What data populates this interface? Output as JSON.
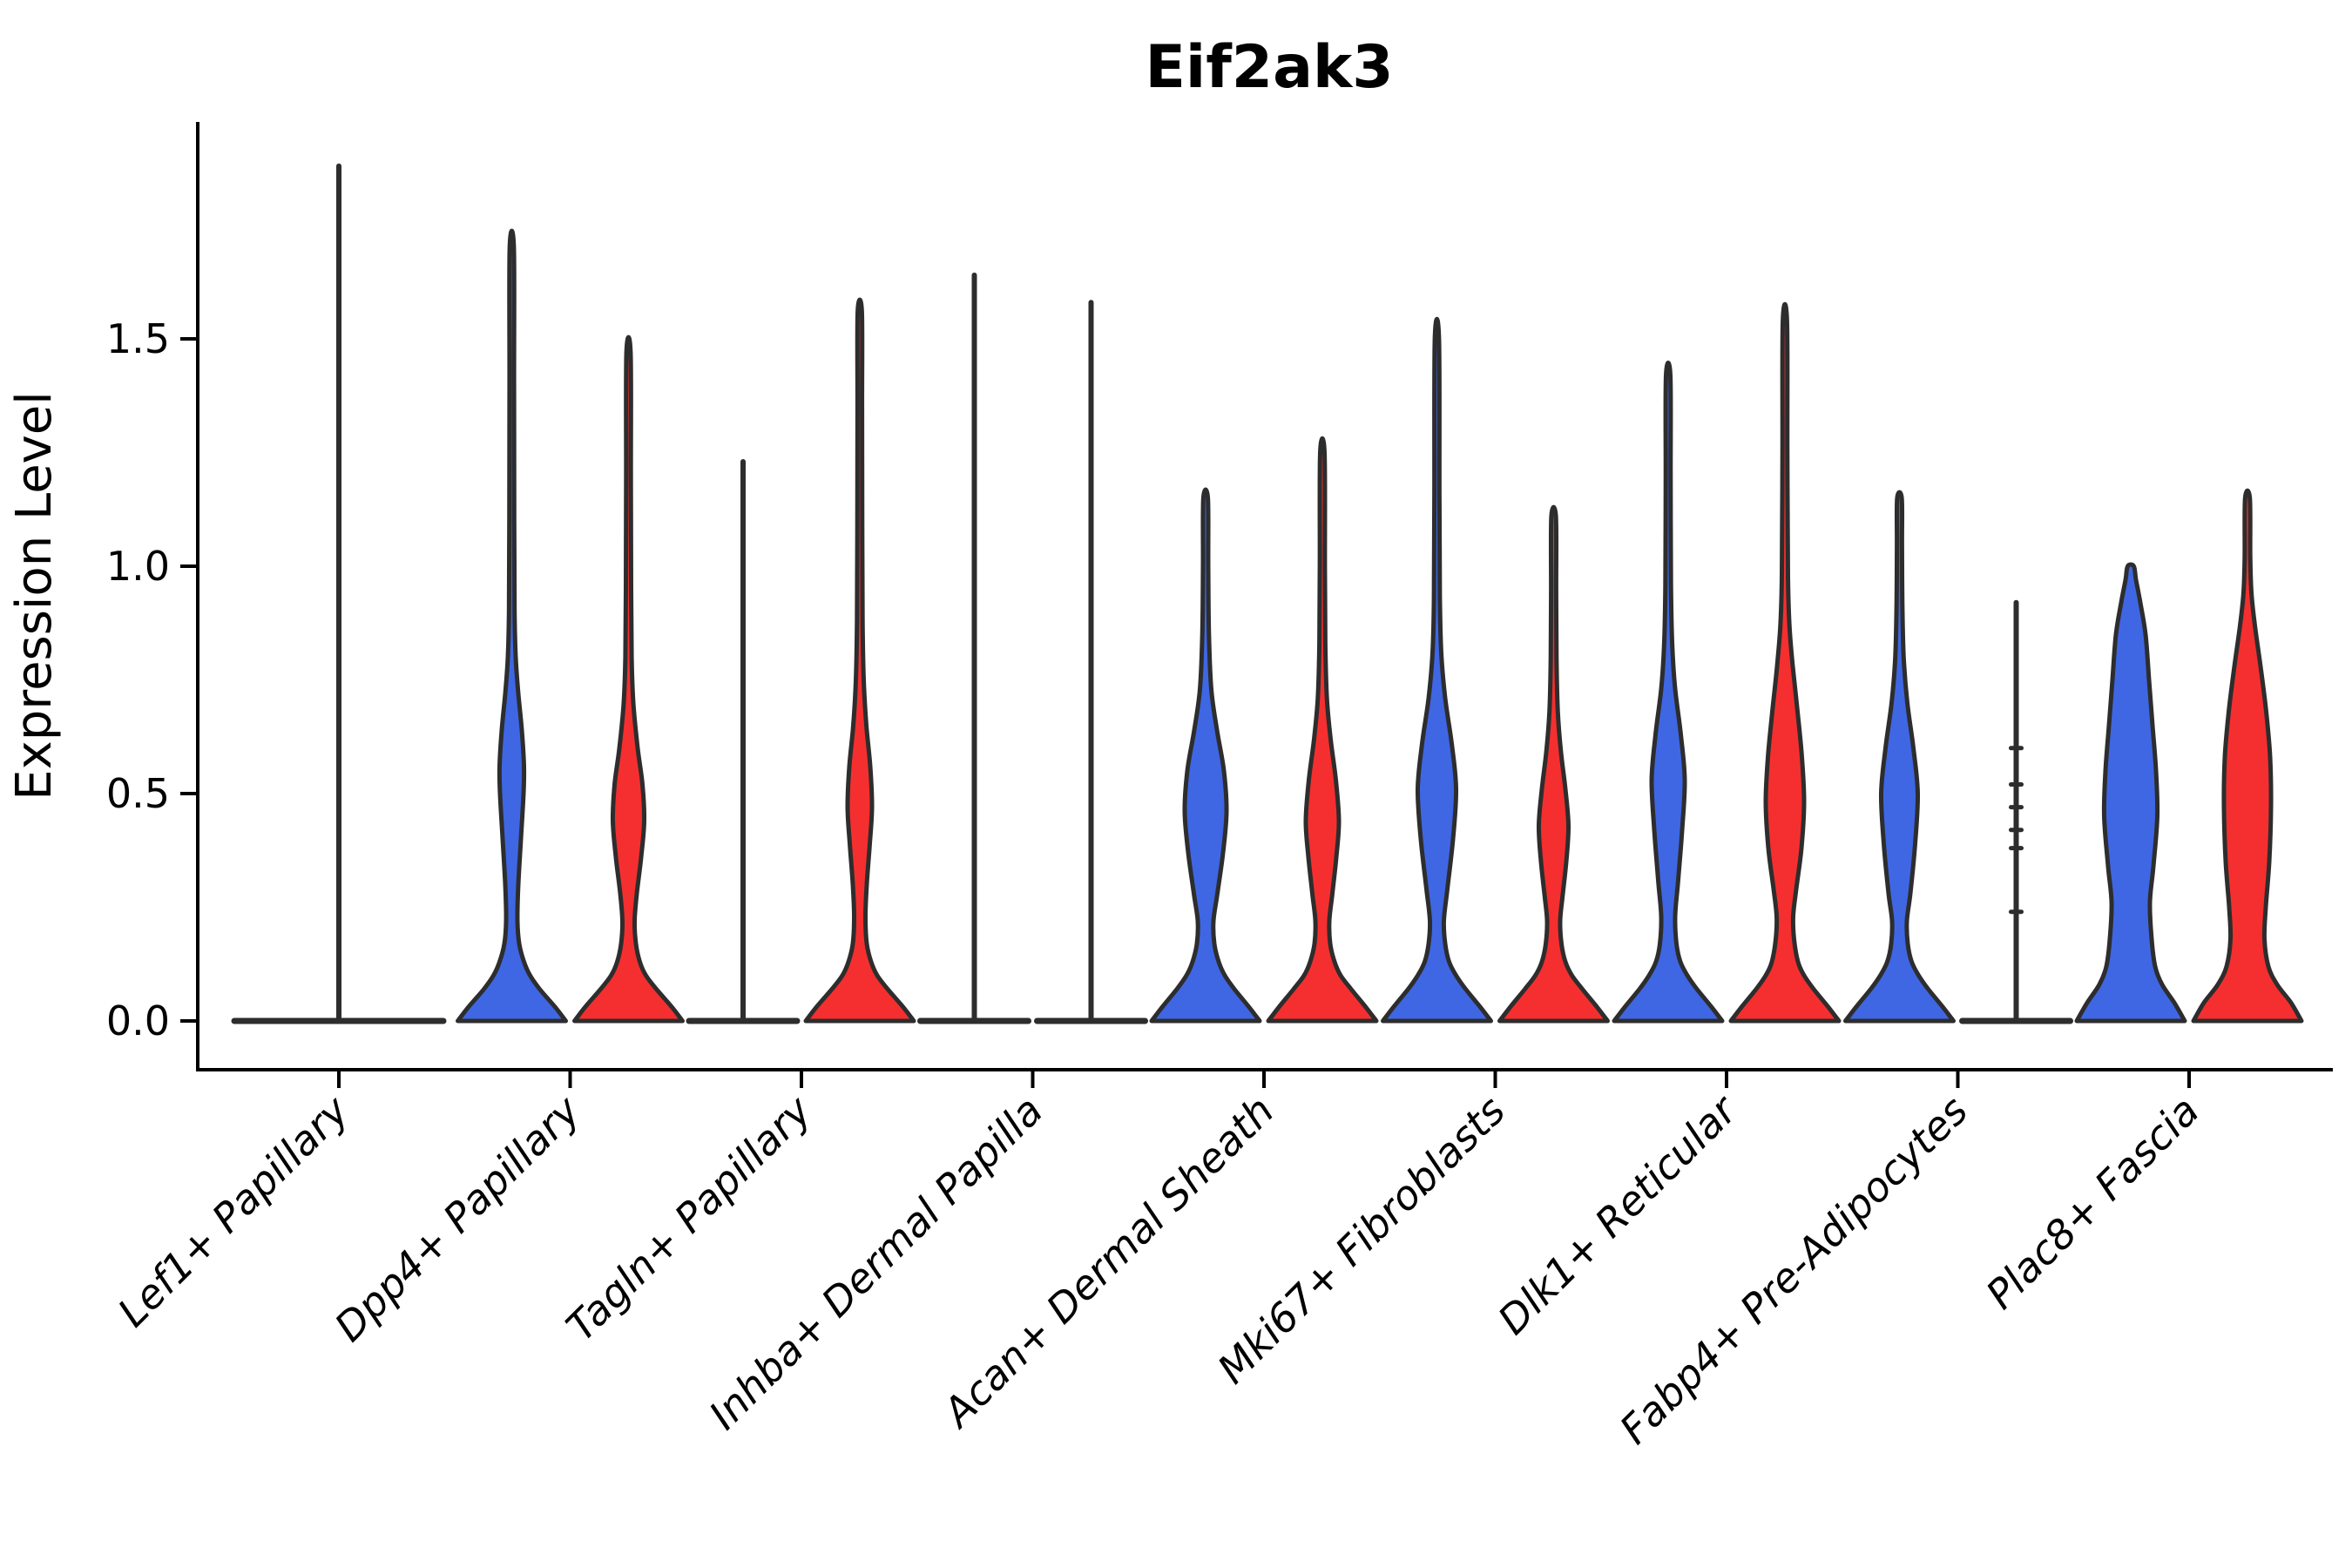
{
  "title": "Eif2ak3",
  "axes": {
    "ylabel": "Expression Level",
    "ytick_labels": [
      "0.0",
      "0.5",
      "1.0",
      "1.5"
    ],
    "ytick_values": [
      0.0,
      0.5,
      1.0,
      1.5
    ]
  },
  "colors": {
    "blue_fill": "#3F67E4",
    "red_fill": "#F52F2F",
    "outline": "#2D2D2D",
    "axis": "#000000"
  },
  "chart_data": {
    "type": "violin",
    "title": "Eif2ak3",
    "xlabel": "",
    "ylabel": "Expression Level",
    "ylim": [
      -0.11,
      1.98
    ],
    "yticks": [
      0.0,
      0.5,
      1.0,
      1.5
    ],
    "grid": false,
    "legend": "none",
    "x_tick_rotation_deg": 45,
    "x_tick_style": "italic",
    "categories": [
      "Lef1+ Papillary",
      "Dpp4+ Papillary",
      "Tagln+ Papillary",
      "Inhba+ Dermal Papilla",
      "Acan+ Dermal Sheath",
      "Mki67+ Fibroblasts",
      "Dlk1+ Reticular",
      "Fabp4+ Pre-Adipocytes",
      "Plac8+ Fascia"
    ],
    "series": [
      "blue",
      "red"
    ],
    "note_profile_units": "profile entries are [expression_value, half_width_px]; flat violins collapse to a baseline with a thin spike up to max",
    "violins": [
      {
        "category": "Lef1+ Papillary",
        "series": "single",
        "style": "flat",
        "fill": "none",
        "max": 1.88,
        "base_halfwidth": 120,
        "nubs": []
      },
      {
        "category": "Dpp4+ Papillary",
        "series": "blue",
        "style": "shaped",
        "max": 1.7,
        "profile": [
          [
            0,
            62
          ],
          [
            0.03,
            50
          ],
          [
            0.07,
            32
          ],
          [
            0.1,
            21
          ],
          [
            0.13,
            14
          ],
          [
            0.17,
            8.5
          ],
          [
            0.22,
            6.5
          ],
          [
            0.3,
            7.5
          ],
          [
            0.4,
            10.5
          ],
          [
            0.5,
            13.5
          ],
          [
            0.56,
            14
          ],
          [
            0.64,
            11.5
          ],
          [
            0.72,
            7.5
          ],
          [
            0.8,
            4.5
          ],
          [
            0.9,
            3.2
          ],
          [
            1.1,
            2.8
          ],
          [
            1.4,
            2.6
          ],
          [
            1.7,
            2.4
          ]
        ]
      },
      {
        "category": "Dpp4+ Papillary",
        "series": "red",
        "style": "shaped",
        "max": 1.47,
        "profile": [
          [
            0,
            62
          ],
          [
            0.03,
            50
          ],
          [
            0.07,
            32
          ],
          [
            0.1,
            20
          ],
          [
            0.13,
            13
          ],
          [
            0.17,
            8.5
          ],
          [
            0.22,
            7
          ],
          [
            0.28,
            9.5
          ],
          [
            0.36,
            14.5
          ],
          [
            0.44,
            18
          ],
          [
            0.52,
            16
          ],
          [
            0.6,
            10.5
          ],
          [
            0.7,
            5.5
          ],
          [
            0.8,
            3.6
          ],
          [
            0.95,
            3
          ],
          [
            1.2,
            2.7
          ],
          [
            1.47,
            2.4
          ]
        ]
      },
      {
        "category": "Tagln+ Papillary",
        "series": "blue",
        "style": "flat",
        "fill": "blue",
        "max": 1.23,
        "base_halfwidth": 62,
        "nubs": []
      },
      {
        "category": "Tagln+ Papillary",
        "series": "red",
        "style": "shaped",
        "max": 1.56,
        "profile": [
          [
            0,
            62
          ],
          [
            0.03,
            50
          ],
          [
            0.07,
            32
          ],
          [
            0.1,
            20
          ],
          [
            0.13,
            13
          ],
          [
            0.17,
            8
          ],
          [
            0.23,
            6.5
          ],
          [
            0.3,
            8
          ],
          [
            0.39,
            11.5
          ],
          [
            0.47,
            14
          ],
          [
            0.56,
            12
          ],
          [
            0.65,
            7.5
          ],
          [
            0.75,
            4.5
          ],
          [
            0.88,
            3.2
          ],
          [
            1.1,
            2.8
          ],
          [
            1.35,
            2.6
          ],
          [
            1.56,
            2.4
          ]
        ]
      },
      {
        "category": "Inhba+ Dermal Papilla",
        "series": "blue",
        "style": "flat",
        "fill": "blue",
        "max": 1.64,
        "base_halfwidth": 62,
        "nubs": []
      },
      {
        "category": "Inhba+ Dermal Papilla",
        "series": "red",
        "style": "flat",
        "fill": "red",
        "max": 1.58,
        "base_halfwidth": 62,
        "nubs": []
      },
      {
        "category": "Acan+ Dermal Sheath",
        "series": "blue",
        "style": "shaped",
        "max": 1.15,
        "profile": [
          [
            0,
            62
          ],
          [
            0.03,
            50
          ],
          [
            0.07,
            33
          ],
          [
            0.1,
            22
          ],
          [
            0.13,
            15
          ],
          [
            0.17,
            10
          ],
          [
            0.22,
            9
          ],
          [
            0.28,
            13.5
          ],
          [
            0.37,
            20
          ],
          [
            0.46,
            24
          ],
          [
            0.55,
            21
          ],
          [
            0.64,
            13
          ],
          [
            0.73,
            6.5
          ],
          [
            0.85,
            3.8
          ],
          [
            1.0,
            3
          ],
          [
            1.15,
            2.6
          ]
        ]
      },
      {
        "category": "Acan+ Dermal Sheath",
        "series": "red",
        "style": "shaped",
        "max": 1.25,
        "profile": [
          [
            0,
            62
          ],
          [
            0.03,
            50
          ],
          [
            0.07,
            33
          ],
          [
            0.1,
            21
          ],
          [
            0.13,
            14
          ],
          [
            0.17,
            9
          ],
          [
            0.22,
            8
          ],
          [
            0.28,
            11.5
          ],
          [
            0.36,
            16
          ],
          [
            0.44,
            19
          ],
          [
            0.53,
            15.5
          ],
          [
            0.62,
            9.5
          ],
          [
            0.71,
            5.2
          ],
          [
            0.83,
            3.4
          ],
          [
            1.0,
            2.9
          ],
          [
            1.25,
            2.5
          ]
        ]
      },
      {
        "category": "Mki67+ Fibroblasts",
        "series": "blue",
        "style": "shaped",
        "max": 1.5,
        "profile": [
          [
            0,
            62
          ],
          [
            0.03,
            50
          ],
          [
            0.07,
            33
          ],
          [
            0.1,
            22
          ],
          [
            0.13,
            14
          ],
          [
            0.17,
            9.5
          ],
          [
            0.22,
            8
          ],
          [
            0.29,
            12
          ],
          [
            0.4,
            18.5
          ],
          [
            0.51,
            22
          ],
          [
            0.61,
            17
          ],
          [
            0.71,
            9.5
          ],
          [
            0.81,
            5
          ],
          [
            0.93,
            3.4
          ],
          [
            1.15,
            2.9
          ],
          [
            1.5,
            2.4
          ]
        ]
      },
      {
        "category": "Mki67+ Fibroblasts",
        "series": "red",
        "style": "shaped",
        "max": 1.11,
        "profile": [
          [
            0,
            62
          ],
          [
            0.03,
            50
          ],
          [
            0.07,
            33
          ],
          [
            0.1,
            21
          ],
          [
            0.13,
            13.5
          ],
          [
            0.17,
            9
          ],
          [
            0.22,
            7.5
          ],
          [
            0.27,
            10
          ],
          [
            0.35,
            14.5
          ],
          [
            0.43,
            17
          ],
          [
            0.51,
            13.5
          ],
          [
            0.59,
            8.5
          ],
          [
            0.68,
            4.8
          ],
          [
            0.8,
            3.3
          ],
          [
            0.95,
            2.9
          ],
          [
            1.11,
            2.6
          ]
        ]
      },
      {
        "category": "Dlk1+ Reticular",
        "series": "blue",
        "style": "shaped",
        "max": 1.42,
        "profile": [
          [
            0,
            62
          ],
          [
            0.03,
            50
          ],
          [
            0.07,
            33
          ],
          [
            0.1,
            22
          ],
          [
            0.13,
            14
          ],
          [
            0.17,
            9.5
          ],
          [
            0.23,
            8
          ],
          [
            0.31,
            11.5
          ],
          [
            0.42,
            16
          ],
          [
            0.53,
            19
          ],
          [
            0.63,
            14.5
          ],
          [
            0.73,
            8
          ],
          [
            0.83,
            4.6
          ],
          [
            0.96,
            3.2
          ],
          [
            1.2,
            2.8
          ],
          [
            1.42,
            2.5
          ]
        ]
      },
      {
        "category": "Dlk1+ Reticular",
        "series": "red",
        "style": "shaped",
        "max": 1.54,
        "profile": [
          [
            0,
            62
          ],
          [
            0.03,
            50
          ],
          [
            0.07,
            33
          ],
          [
            0.1,
            22
          ],
          [
            0.13,
            15
          ],
          [
            0.18,
            10.5
          ],
          [
            0.23,
            9.5
          ],
          [
            0.29,
            13
          ],
          [
            0.38,
            19
          ],
          [
            0.48,
            22
          ],
          [
            0.58,
            19.5
          ],
          [
            0.68,
            14.5
          ],
          [
            0.78,
            9
          ],
          [
            0.87,
            5.2
          ],
          [
            0.98,
            3.5
          ],
          [
            1.25,
            2.8
          ],
          [
            1.54,
            2.4
          ]
        ]
      },
      {
        "category": "Fabp4+ Pre-Adipocytes",
        "series": "blue",
        "style": "shaped",
        "max": 1.15,
        "profile": [
          [
            0,
            62
          ],
          [
            0.03,
            50
          ],
          [
            0.07,
            33
          ],
          [
            0.1,
            22
          ],
          [
            0.13,
            14
          ],
          [
            0.17,
            9.5
          ],
          [
            0.22,
            8.5
          ],
          [
            0.28,
            12.5
          ],
          [
            0.39,
            18
          ],
          [
            0.5,
            21
          ],
          [
            0.6,
            16
          ],
          [
            0.7,
            9
          ],
          [
            0.8,
            4.8
          ],
          [
            0.92,
            3.3
          ],
          [
            1.05,
            2.9
          ],
          [
            1.15,
            2.6
          ]
        ]
      },
      {
        "category": "Fabp4+ Pre-Adipocytes",
        "series": "red",
        "style": "flat",
        "fill": "red",
        "max": 0.92,
        "base_halfwidth": 62,
        "nubs": [
          0.6,
          0.52,
          0.47,
          0.42,
          0.38,
          0.24
        ]
      },
      {
        "category": "Plac8+ Fascia",
        "series": "blue",
        "style": "shaped",
        "max": 1.0,
        "profile": [
          [
            0,
            62
          ],
          [
            0.04,
            50
          ],
          [
            0.08,
            36
          ],
          [
            0.12,
            28
          ],
          [
            0.18,
            24
          ],
          [
            0.26,
            22
          ],
          [
            0.34,
            26
          ],
          [
            0.45,
            30.5
          ],
          [
            0.55,
            29
          ],
          [
            0.65,
            25
          ],
          [
            0.75,
            21
          ],
          [
            0.85,
            17
          ],
          [
            0.92,
            11
          ],
          [
            0.97,
            6
          ],
          [
            1.0,
            3.5
          ]
        ]
      },
      {
        "category": "Plac8+ Fascia",
        "series": "red",
        "style": "shaped",
        "max": 1.15,
        "profile": [
          [
            0,
            62
          ],
          [
            0.04,
            50
          ],
          [
            0.08,
            34
          ],
          [
            0.12,
            24
          ],
          [
            0.18,
            19.5
          ],
          [
            0.25,
            21
          ],
          [
            0.35,
            25
          ],
          [
            0.47,
            27
          ],
          [
            0.58,
            26
          ],
          [
            0.68,
            21.5
          ],
          [
            0.78,
            15
          ],
          [
            0.87,
            8.5
          ],
          [
            0.94,
            4.6
          ],
          [
            1.02,
            3.2
          ],
          [
            1.15,
            2.7
          ]
        ]
      }
    ]
  }
}
